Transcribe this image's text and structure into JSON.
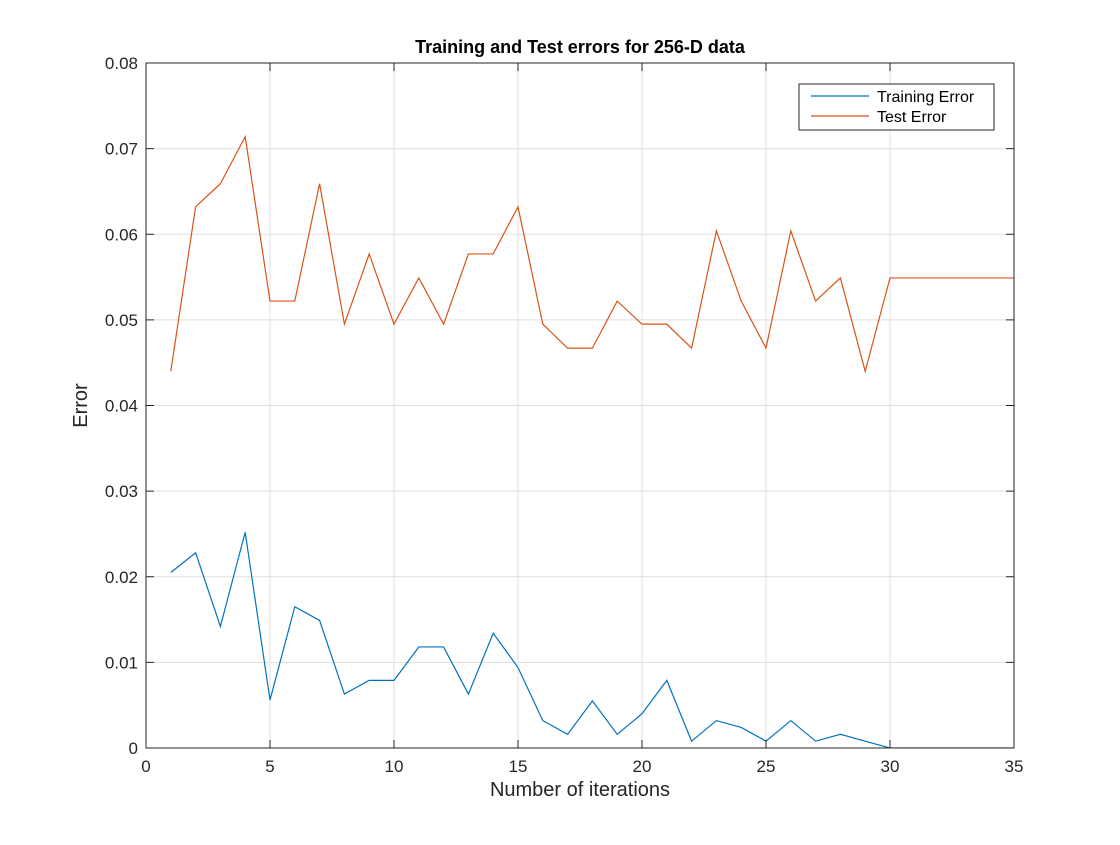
{
  "chart_data": {
    "type": "line",
    "title": "Training and Test errors for 256-D data",
    "xlabel": "Number of iterations",
    "ylabel": "Error",
    "xlim": [
      0,
      35
    ],
    "ylim": [
      0,
      0.08
    ],
    "xticks": [
      0,
      5,
      10,
      15,
      20,
      25,
      30,
      35
    ],
    "yticks": [
      0,
      0.01,
      0.02,
      0.03,
      0.04,
      0.05,
      0.06,
      0.07,
      0.08
    ],
    "xtick_labels": [
      "0",
      "5",
      "10",
      "15",
      "20",
      "25",
      "30",
      "35"
    ],
    "ytick_labels": [
      "0",
      "0.01",
      "0.02",
      "0.03",
      "0.04",
      "0.05",
      "0.06",
      "0.07",
      "0.08"
    ],
    "grid": true,
    "legend_position": "top-right",
    "x": [
      1,
      2,
      3,
      4,
      5,
      6,
      7,
      8,
      9,
      10,
      11,
      12,
      13,
      14,
      15,
      16,
      17,
      18,
      19,
      20,
      21,
      22,
      23,
      24,
      25,
      26,
      27,
      28,
      29,
      30,
      31,
      32,
      33,
      34,
      35
    ],
    "series": [
      {
        "name": "Training Error",
        "color": "#0072BD",
        "values": [
          0.0205,
          0.0228,
          0.0142,
          0.0252,
          0.0056,
          0.0165,
          0.0149,
          0.0063,
          0.0079,
          0.0079,
          0.0118,
          0.0118,
          0.0063,
          0.0134,
          0.0094,
          0.0032,
          0.0016,
          0.0055,
          0.0016,
          0.004,
          0.0079,
          0.0008,
          0.0032,
          0.0024,
          0.0008,
          0.0032,
          0.0008,
          0.0016,
          0.0008,
          0.0,
          0.0,
          0.0,
          0.0,
          0.0,
          0.0
        ]
      },
      {
        "name": "Test Error",
        "color": "#D95319",
        "values": [
          0.044,
          0.0632,
          0.0659,
          0.0714,
          0.0522,
          0.0522,
          0.0659,
          0.0495,
          0.0577,
          0.0495,
          0.0549,
          0.0495,
          0.0577,
          0.0577,
          0.0632,
          0.0495,
          0.0467,
          0.0467,
          0.0522,
          0.0495,
          0.0495,
          0.0467,
          0.0604,
          0.0522,
          0.0467,
          0.0604,
          0.0522,
          0.0549,
          0.044,
          0.0549,
          0.0549,
          0.0549,
          0.0549,
          0.0549,
          0.0549
        ]
      }
    ]
  }
}
